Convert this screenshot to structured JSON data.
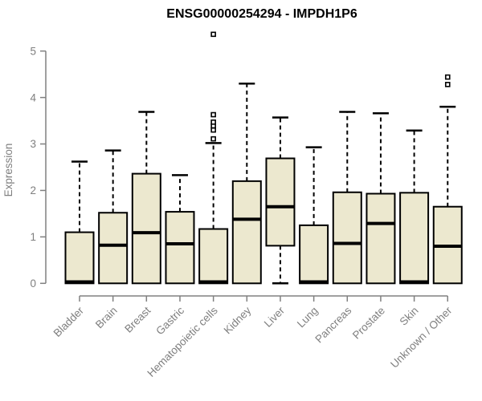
{
  "chart_data": {
    "type": "boxplot",
    "title": "ENSG00000254294 - IMPDH1P6",
    "ylabel": "Expression",
    "xlabel": "",
    "ylim": [
      0,
      5.5
    ],
    "yticks": [
      0,
      1,
      2,
      3,
      4,
      5
    ],
    "grid": false,
    "legend": "none",
    "categories": [
      "Bladder",
      "Brain",
      "Breast",
      "Gastric",
      "Hematopoietic cells",
      "Kidney",
      "Liver",
      "Lung",
      "Pancreas",
      "Prostate",
      "Skin",
      "Unknown / Other"
    ],
    "series": [
      {
        "name": "Bladder",
        "low": 0,
        "q1": 0,
        "median": 0.03,
        "q3": 1.1,
        "high": 2.62,
        "outliers": []
      },
      {
        "name": "Brain",
        "low": 0,
        "q1": 0,
        "median": 0.82,
        "q3": 1.52,
        "high": 2.86,
        "outliers": []
      },
      {
        "name": "Breast",
        "low": 0,
        "q1": 0,
        "median": 1.09,
        "q3": 2.36,
        "high": 3.69,
        "outliers": []
      },
      {
        "name": "Gastric",
        "low": 0,
        "q1": 0,
        "median": 0.85,
        "q3": 1.54,
        "high": 2.33,
        "outliers": []
      },
      {
        "name": "Hematopoietic cells",
        "low": 0,
        "q1": 0,
        "median": 0.03,
        "q3": 1.17,
        "high": 3.02,
        "outliers": [
          3.11,
          3.3,
          3.39,
          3.47,
          3.63,
          5.36
        ]
      },
      {
        "name": "Kidney",
        "low": 0,
        "q1": 0,
        "median": 1.38,
        "q3": 2.2,
        "high": 4.3,
        "outliers": []
      },
      {
        "name": "Liver",
        "low": 0,
        "q1": 0.81,
        "median": 1.65,
        "q3": 2.69,
        "high": 3.57,
        "outliers": []
      },
      {
        "name": "Lung",
        "low": 0,
        "q1": 0,
        "median": 0.03,
        "q3": 1.25,
        "high": 2.93,
        "outliers": []
      },
      {
        "name": "Pancreas",
        "low": 0,
        "q1": 0,
        "median": 0.86,
        "q3": 1.96,
        "high": 3.69,
        "outliers": []
      },
      {
        "name": "Prostate",
        "low": 0,
        "q1": 0,
        "median": 1.29,
        "q3": 1.93,
        "high": 3.66,
        "outliers": []
      },
      {
        "name": "Skin",
        "low": 0,
        "q1": 0,
        "median": 0.03,
        "q3": 1.95,
        "high": 3.29,
        "outliers": []
      },
      {
        "name": "Unknown / Other",
        "low": 0,
        "q1": 0,
        "median": 0.8,
        "q3": 1.65,
        "high": 3.8,
        "outliers": [
          4.28,
          4.44
        ]
      }
    ],
    "colors": {
      "box_fill": "#ECE8CF",
      "box_stroke": "#000000",
      "median": "#000000",
      "axis": "#808080",
      "tick_text": "#7F7F7F",
      "title": "#000000",
      "background": "#FFFFFF"
    }
  }
}
